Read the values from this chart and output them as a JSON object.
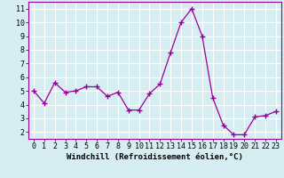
{
  "x": [
    0,
    1,
    2,
    3,
    4,
    5,
    6,
    7,
    8,
    9,
    10,
    11,
    12,
    13,
    14,
    15,
    16,
    17,
    18,
    19,
    20,
    21,
    22,
    23
  ],
  "y": [
    5.0,
    4.1,
    5.6,
    4.9,
    5.0,
    5.3,
    5.3,
    4.6,
    4.9,
    3.6,
    3.6,
    4.8,
    5.5,
    7.8,
    10.0,
    11.0,
    9.0,
    4.5,
    2.5,
    1.8,
    1.8,
    3.1,
    3.2,
    3.5
  ],
  "line_color": "#990099",
  "marker": "+",
  "markersize": 4,
  "linewidth": 0.9,
  "markeredgewidth": 1.0,
  "xlabel": "Windchill (Refroidissement éolien,°C)",
  "xlabel_fontsize": 6.5,
  "tick_fontsize": 6,
  "xlim": [
    -0.5,
    23.5
  ],
  "ylim": [
    1.5,
    11.5
  ],
  "yticks": [
    2,
    3,
    4,
    5,
    6,
    7,
    8,
    9,
    10,
    11
  ],
  "xticks": [
    0,
    1,
    2,
    3,
    4,
    5,
    6,
    7,
    8,
    9,
    10,
    11,
    12,
    13,
    14,
    15,
    16,
    17,
    18,
    19,
    20,
    21,
    22,
    23
  ],
  "bg_color": "#d6eef2",
  "grid_color": "#ffffff",
  "spine_color": "#990099"
}
